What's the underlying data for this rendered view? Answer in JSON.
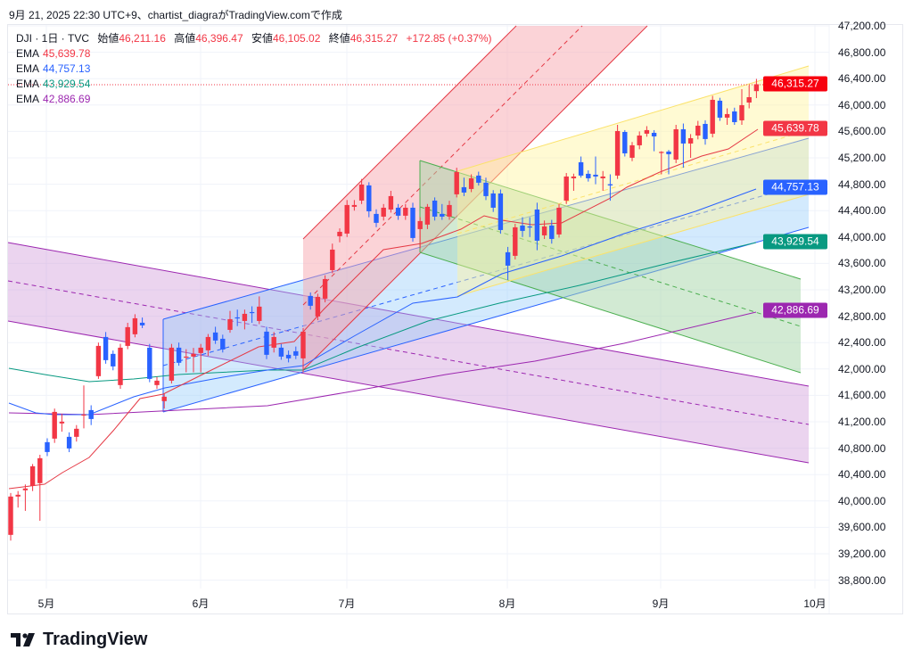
{
  "caption": "9月 21, 2025 22:30 UTC+9、chartist_diagraがTradingView.comで作成",
  "legend": {
    "symbol": "DJI · 1日 · TVC",
    "open_label": "始値",
    "open": "46,211.16",
    "high_label": "高値",
    "high": "46,396.47",
    "low_label": "安値",
    "low": "46,105.02",
    "close_label": "終値",
    "close": "46,315.27",
    "change": "+172.85 (+0.37%)",
    "emas": [
      {
        "label": "EMA",
        "value": "45,639.78",
        "color": "#f23645"
      },
      {
        "label": "EMA",
        "value": "44,757.13",
        "color": "#2962ff"
      },
      {
        "label": "EMA",
        "value": "43,929.54",
        "color": "#089981"
      },
      {
        "label": "EMA",
        "value": "42,886.69",
        "color": "#9c27b0"
      }
    ]
  },
  "price_axis": [
    "47,200.00",
    "46,800.00",
    "46,400.00",
    "46,000.00",
    "45,600.00",
    "45,200.00",
    "44,800.00",
    "44,400.00",
    "44,000.00",
    "43,600.00",
    "43,200.00",
    "42,800.00",
    "42,400.00",
    "42,000.00",
    "41,600.00",
    "41,200.00",
    "40,800.00",
    "40,400.00",
    "40,000.00",
    "39,600.00",
    "39,200.00",
    "38,800.00"
  ],
  "badges": [
    {
      "value": "46,315.27",
      "price": 46315.27,
      "color": "#f7000f"
    },
    {
      "value": "45,639.78",
      "price": 45639.78,
      "color": "#f23645"
    },
    {
      "value": "44,757.13",
      "price": 44757.13,
      "color": "#2962ff"
    },
    {
      "value": "43,929.54",
      "price": 43929.54,
      "color": "#089981"
    },
    {
      "value": "42,886.69",
      "price": 42886.69,
      "color": "#9c27b0"
    }
  ],
  "months": [
    "5月",
    "6月",
    "7月",
    "8月",
    "9月",
    "10月"
  ],
  "colors": {
    "up": "#f23645",
    "down": "#2962ff"
  },
  "brand": "TradingView",
  "candles": [
    [
      39486,
      40120,
      39400,
      40067
    ],
    [
      40067,
      40150,
      39900,
      40094
    ],
    [
      40162,
      40250,
      39850,
      40189
    ],
    [
      40229,
      40560,
      40150,
      40526
    ],
    [
      40270,
      40700,
      39700,
      40648
    ],
    [
      40891,
      40950,
      40680,
      40742
    ],
    [
      40945,
      41400,
      40880,
      41350
    ],
    [
      41175,
      41320,
      41050,
      41202
    ],
    [
      40972,
      41040,
      40740,
      40796
    ],
    [
      40972,
      41150,
      40900,
      41094
    ],
    [
      41296,
      41750,
      41100,
      41310
    ],
    [
      41377,
      41450,
      41150,
      41242
    ],
    [
      41891,
      42400,
      41850,
      42350
    ],
    [
      42485,
      42560,
      42080,
      42134
    ],
    [
      42229,
      42280,
      41980,
      42039
    ],
    [
      41756,
      42380,
      41700,
      42323
    ],
    [
      42350,
      42700,
      42300,
      42634
    ],
    [
      42526,
      42830,
      42480,
      42769
    ],
    [
      42701,
      42780,
      42620,
      42661
    ],
    [
      42323,
      42380,
      41800,
      41850
    ],
    [
      41756,
      41880,
      41700,
      41823
    ],
    [
      41513,
      41630,
      41400,
      41580
    ],
    [
      41823,
      42380,
      41780,
      42323
    ],
    [
      42323,
      42400,
      42050,
      42094
    ],
    [
      42175,
      42300,
      41950,
      42188
    ],
    [
      42188,
      42320,
      41950,
      42229
    ],
    [
      42242,
      42380,
      41950,
      42323
    ],
    [
      42283,
      42530,
      42200,
      42485
    ],
    [
      42553,
      42640,
      42380,
      42431
    ],
    [
      42458,
      42520,
      42250,
      42296
    ],
    [
      42593,
      42880,
      42550,
      42755
    ],
    [
      42782,
      42900,
      42650,
      42770
    ],
    [
      42728,
      42900,
      42600,
      42836
    ],
    [
      42863,
      42950,
      42700,
      42850
    ],
    [
      42728,
      43100,
      42680,
      42945
    ],
    [
      42566,
      42640,
      42150,
      42215
    ],
    [
      42323,
      42560,
      42250,
      42485
    ],
    [
      42323,
      42380,
      42140,
      42188
    ],
    [
      42215,
      42280,
      42100,
      42161
    ],
    [
      42269,
      42340,
      42150,
      42202
    ],
    [
      42161,
      42620,
      41950,
      42566
    ],
    [
      43107,
      43160,
      42900,
      42958
    ],
    [
      42796,
      43140,
      42740,
      43093
    ],
    [
      43066,
      43420,
      43010,
      43363
    ],
    [
      43498,
      43900,
      43450,
      43809
    ],
    [
      44012,
      44130,
      43920,
      44079
    ],
    [
      44052,
      44560,
      44000,
      44485
    ],
    [
      44458,
      44560,
      44400,
      44485
    ],
    [
      44552,
      44880,
      44500,
      44795
    ],
    [
      44782,
      44830,
      44300,
      44390
    ],
    [
      44350,
      44420,
      44150,
      44215
    ],
    [
      44309,
      44500,
      44250,
      44444
    ],
    [
      44417,
      44700,
      44370,
      44620
    ],
    [
      44444,
      44500,
      44260,
      44323
    ],
    [
      44323,
      44500,
      44260,
      44444
    ],
    [
      44444,
      44520,
      43930,
      43985
    ],
    [
      44120,
      44300,
      43830,
      44242
    ],
    [
      44188,
      44500,
      44120,
      44458
    ],
    [
      44552,
      44600,
      44250,
      44309
    ],
    [
      44350,
      44500,
      44260,
      44309
    ],
    [
      44309,
      44550,
      44260,
      44485
    ],
    [
      44647,
      45050,
      44600,
      44985
    ],
    [
      44755,
      44900,
      44620,
      44674
    ],
    [
      44728,
      44950,
      44680,
      44890
    ],
    [
      44931,
      44990,
      44780,
      44823
    ],
    [
      44823,
      44900,
      44560,
      44620
    ],
    [
      44660,
      44710,
      44380,
      44444
    ],
    [
      44660,
      44720,
      44050,
      44106
    ],
    [
      43769,
      43850,
      43350,
      43566
    ],
    [
      43715,
      44200,
      43660,
      44147
    ],
    [
      44174,
      44300,
      44000,
      44093
    ],
    [
      44160,
      44300,
      44000,
      44150
    ],
    [
      44417,
      44520,
      43800,
      43944
    ],
    [
      44025,
      44250,
      43970,
      44160
    ],
    [
      44174,
      44260,
      43900,
      43971
    ],
    [
      44039,
      44500,
      43990,
      44444
    ],
    [
      44552,
      44970,
      44500,
      44917
    ],
    [
      44890,
      44960,
      44700,
      44917
    ],
    [
      45133,
      45220,
      44900,
      44931
    ],
    [
      44958,
      45010,
      44840,
      44890
    ],
    [
      44944,
      45220,
      44800,
      44917
    ],
    [
      44890,
      45000,
      44700,
      44917
    ],
    [
      44800,
      44950,
      44550,
      44782
    ],
    [
      44931,
      45700,
      44880,
      45606
    ],
    [
      45592,
      45620,
      45220,
      45268
    ],
    [
      45201,
      45440,
      45150,
      45390
    ],
    [
      45390,
      45600,
      45330,
      45538
    ],
    [
      45566,
      45680,
      45520,
      45620
    ],
    [
      45579,
      45620,
      45300,
      45525
    ],
    [
      45282,
      45300,
      44950,
      45290
    ],
    [
      45295,
      45320,
      44950,
      45255
    ],
    [
      45174,
      45700,
      45120,
      45633
    ],
    [
      45633,
      45720,
      45050,
      45417
    ],
    [
      45417,
      45560,
      45200,
      45498
    ],
    [
      45538,
      45760,
      45480,
      45687
    ],
    [
      45714,
      45770,
      45400,
      45485
    ],
    [
      45566,
      46140,
      45510,
      46079
    ],
    [
      46066,
      46110,
      45760,
      45809
    ],
    [
      45809,
      45950,
      45700,
      45863
    ],
    [
      45903,
      45960,
      45700,
      45741
    ],
    [
      45768,
      46240,
      45700,
      45998
    ],
    [
      46038,
      46300,
      45950,
      46119
    ],
    [
      46211.16,
      46396.47,
      46105.02,
      46315.27
    ]
  ]
}
